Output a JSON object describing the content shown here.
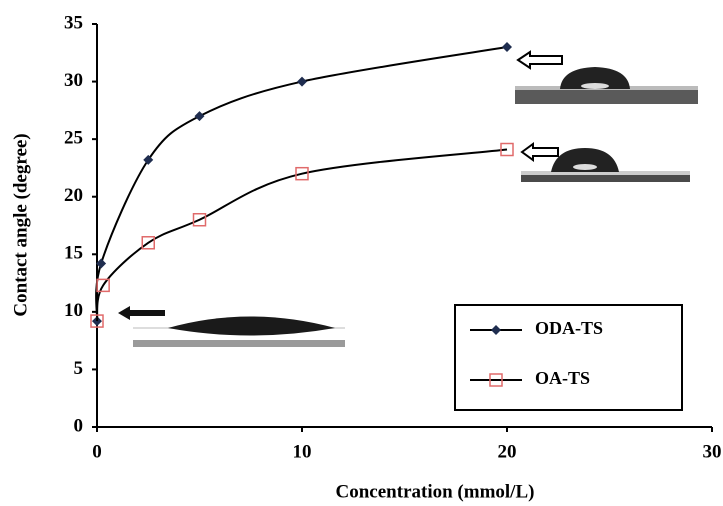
{
  "chart_data": {
    "type": "line",
    "xlabel": "Concentration (mmol/L)",
    "ylabel": "Contact angle (degree)",
    "xlim": [
      0,
      30
    ],
    "xticks": [
      0,
      10,
      20,
      30
    ],
    "ylim": [
      0,
      35
    ],
    "yticks": [
      0,
      5,
      10,
      15,
      20,
      25,
      30,
      35
    ],
    "legend": "lower right",
    "series": [
      {
        "name": "ODA-TS",
        "color": "#1f2d4f",
        "marker": "diamond",
        "x": [
          0,
          0.2,
          2.5,
          5,
          10,
          20
        ],
        "values": [
          9.2,
          14.2,
          23.2,
          27,
          30,
          33
        ]
      },
      {
        "name": "OA-TS",
        "color": "#e06a6a",
        "marker": "square",
        "x": [
          0,
          0.3,
          2.5,
          5,
          10,
          20
        ],
        "values": [
          9.2,
          12.3,
          16,
          18,
          22,
          24.1
        ]
      }
    ]
  }
}
